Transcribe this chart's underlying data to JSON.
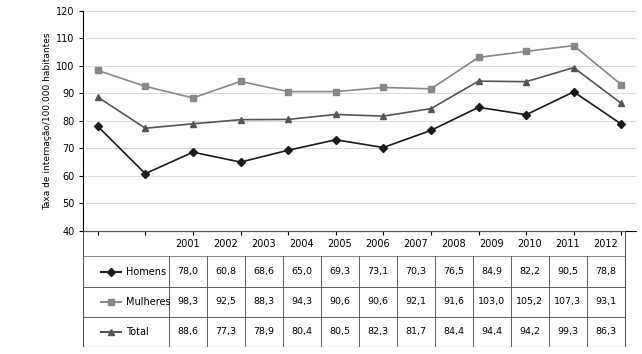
{
  "years": [
    2001,
    2002,
    2003,
    2004,
    2005,
    2006,
    2007,
    2008,
    2009,
    2010,
    2011,
    2012
  ],
  "homens": [
    78.0,
    60.8,
    68.6,
    65.0,
    69.3,
    73.1,
    70.3,
    76.5,
    84.9,
    82.2,
    90.5,
    78.8
  ],
  "mulheres": [
    98.3,
    92.5,
    88.3,
    94.3,
    90.6,
    90.6,
    92.1,
    91.6,
    103.0,
    105.2,
    107.3,
    93.1
  ],
  "total": [
    88.6,
    77.3,
    78.9,
    80.4,
    80.5,
    82.3,
    81.7,
    84.4,
    94.4,
    94.2,
    99.3,
    86.3
  ],
  "ylabel": "Taxa de internação/100.000 habitantes",
  "ylim": [
    40,
    120
  ],
  "yticks": [
    40,
    50,
    60,
    70,
    80,
    90,
    100,
    110,
    120
  ],
  "color_homens": "#1a1a1a",
  "color_mulheres": "#888888",
  "color_total": "#555555",
  "table_years": [
    "2001",
    "2002",
    "2003",
    "2004",
    "2005",
    "2006",
    "2007",
    "2008",
    "2009",
    "2010",
    "2011",
    "2012"
  ],
  "table_homens": [
    "78,0",
    "60,8",
    "68,6",
    "65,0",
    "69,3",
    "73,1",
    "70,3",
    "76,5",
    "84,9",
    "82,2",
    "90,5",
    "78,8"
  ],
  "table_mulheres": [
    "98,3",
    "92,5",
    "88,3",
    "94,3",
    "90,6",
    "90,6",
    "92,1",
    "91,6",
    "103,0",
    "105,2",
    "107,3",
    "93,1"
  ],
  "table_total": [
    "88,6",
    "77,3",
    "78,9",
    "80,4",
    "80,5",
    "82,3",
    "81,7",
    "84,4",
    "94,4",
    "94,2",
    "99,3",
    "86,3"
  ],
  "series_labels": [
    "Homens",
    "Mulheres",
    "Total"
  ]
}
